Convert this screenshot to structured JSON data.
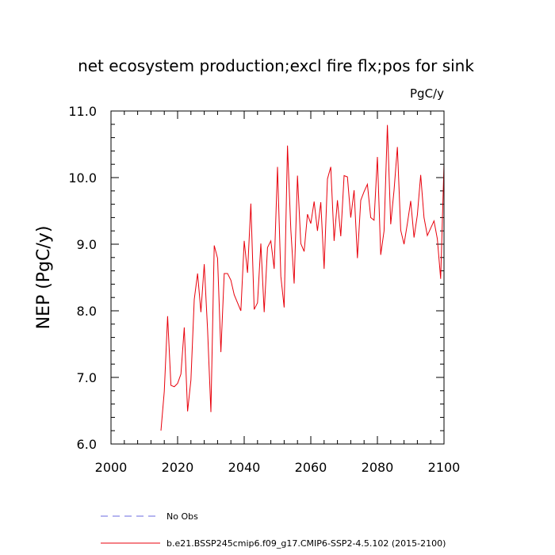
{
  "chart_data": {
    "type": "line",
    "title": "net ecosystem production;excl fire flx;pos for sink",
    "units": "PgC/y",
    "xlabel": "",
    "ylabel": "NEP  (PgC/y)",
    "xlim": [
      2000,
      2100
    ],
    "ylim": [
      6.0,
      11.0
    ],
    "xticks": [
      2000,
      2020,
      2040,
      2060,
      2080,
      2100
    ],
    "xtick_labels": [
      "2000",
      "2020",
      "2040",
      "2060",
      "2080",
      "2100"
    ],
    "yticks": [
      6.0,
      7.0,
      8.0,
      9.0,
      10.0,
      11.0
    ],
    "ytick_labels": [
      "6.0",
      "7.0",
      "8.0",
      "9.0",
      "10.0",
      "11.0"
    ],
    "grid": false,
    "legend": [
      {
        "label": "No Obs",
        "color": "#6a6ae0",
        "style": "dashed"
      },
      {
        "label": "b.e21.BSSP245cmip6.f09_g17.CMIP6-SSP2-4.5.102 (2015-2100)",
        "color": "#e8000b",
        "style": "solid"
      }
    ],
    "series": [
      {
        "name": "b.e21.BSSP245cmip6.f09_g17.CMIP6-SSP2-4.5.102 (2015-2100)",
        "color": "#e8000b",
        "x": [
          2015,
          2016,
          2017,
          2018,
          2019,
          2020,
          2021,
          2022,
          2023,
          2024,
          2025,
          2026,
          2027,
          2028,
          2029,
          2030,
          2031,
          2032,
          2033,
          2034,
          2035,
          2036,
          2037,
          2038,
          2039,
          2040,
          2041,
          2042,
          2043,
          2044,
          2045,
          2046,
          2047,
          2048,
          2049,
          2050,
          2051,
          2052,
          2053,
          2054,
          2055,
          2056,
          2057,
          2058,
          2059,
          2060,
          2061,
          2062,
          2063,
          2064,
          2065,
          2066,
          2067,
          2068,
          2069,
          2070,
          2071,
          2072,
          2073,
          2074,
          2075,
          2076,
          2077,
          2078,
          2079,
          2080,
          2081,
          2082,
          2083,
          2084,
          2085,
          2086,
          2087,
          2088,
          2089,
          2090,
          2091,
          2092,
          2093,
          2094,
          2095,
          2096,
          2097,
          2098,
          2099,
          2100
        ],
        "values": [
          6.2,
          6.79,
          7.92,
          6.88,
          6.86,
          6.91,
          7.05,
          7.75,
          6.49,
          6.96,
          8.17,
          8.56,
          7.98,
          8.7,
          7.72,
          6.48,
          8.98,
          8.79,
          7.38,
          8.56,
          8.56,
          8.46,
          8.24,
          8.12,
          8.0,
          9.05,
          8.57,
          9.61,
          8.02,
          8.12,
          9.01,
          7.98,
          8.95,
          9.05,
          8.63,
          10.16,
          8.52,
          8.05,
          10.48,
          9.22,
          8.41,
          10.03,
          9.01,
          8.89,
          9.45,
          9.31,
          9.64,
          9.2,
          9.63,
          8.63,
          9.98,
          10.16,
          9.05,
          9.66,
          9.12,
          10.03,
          10.01,
          9.4,
          9.81,
          8.79,
          9.66,
          9.79,
          9.9,
          9.4,
          9.36,
          10.31,
          8.84,
          9.2,
          10.79,
          9.3,
          9.81,
          10.46,
          9.21,
          9.0,
          9.31,
          9.65,
          9.1,
          9.44,
          10.04,
          9.4,
          9.13,
          9.24,
          9.35,
          9.08,
          8.48,
          10.2
        ]
      }
    ]
  }
}
